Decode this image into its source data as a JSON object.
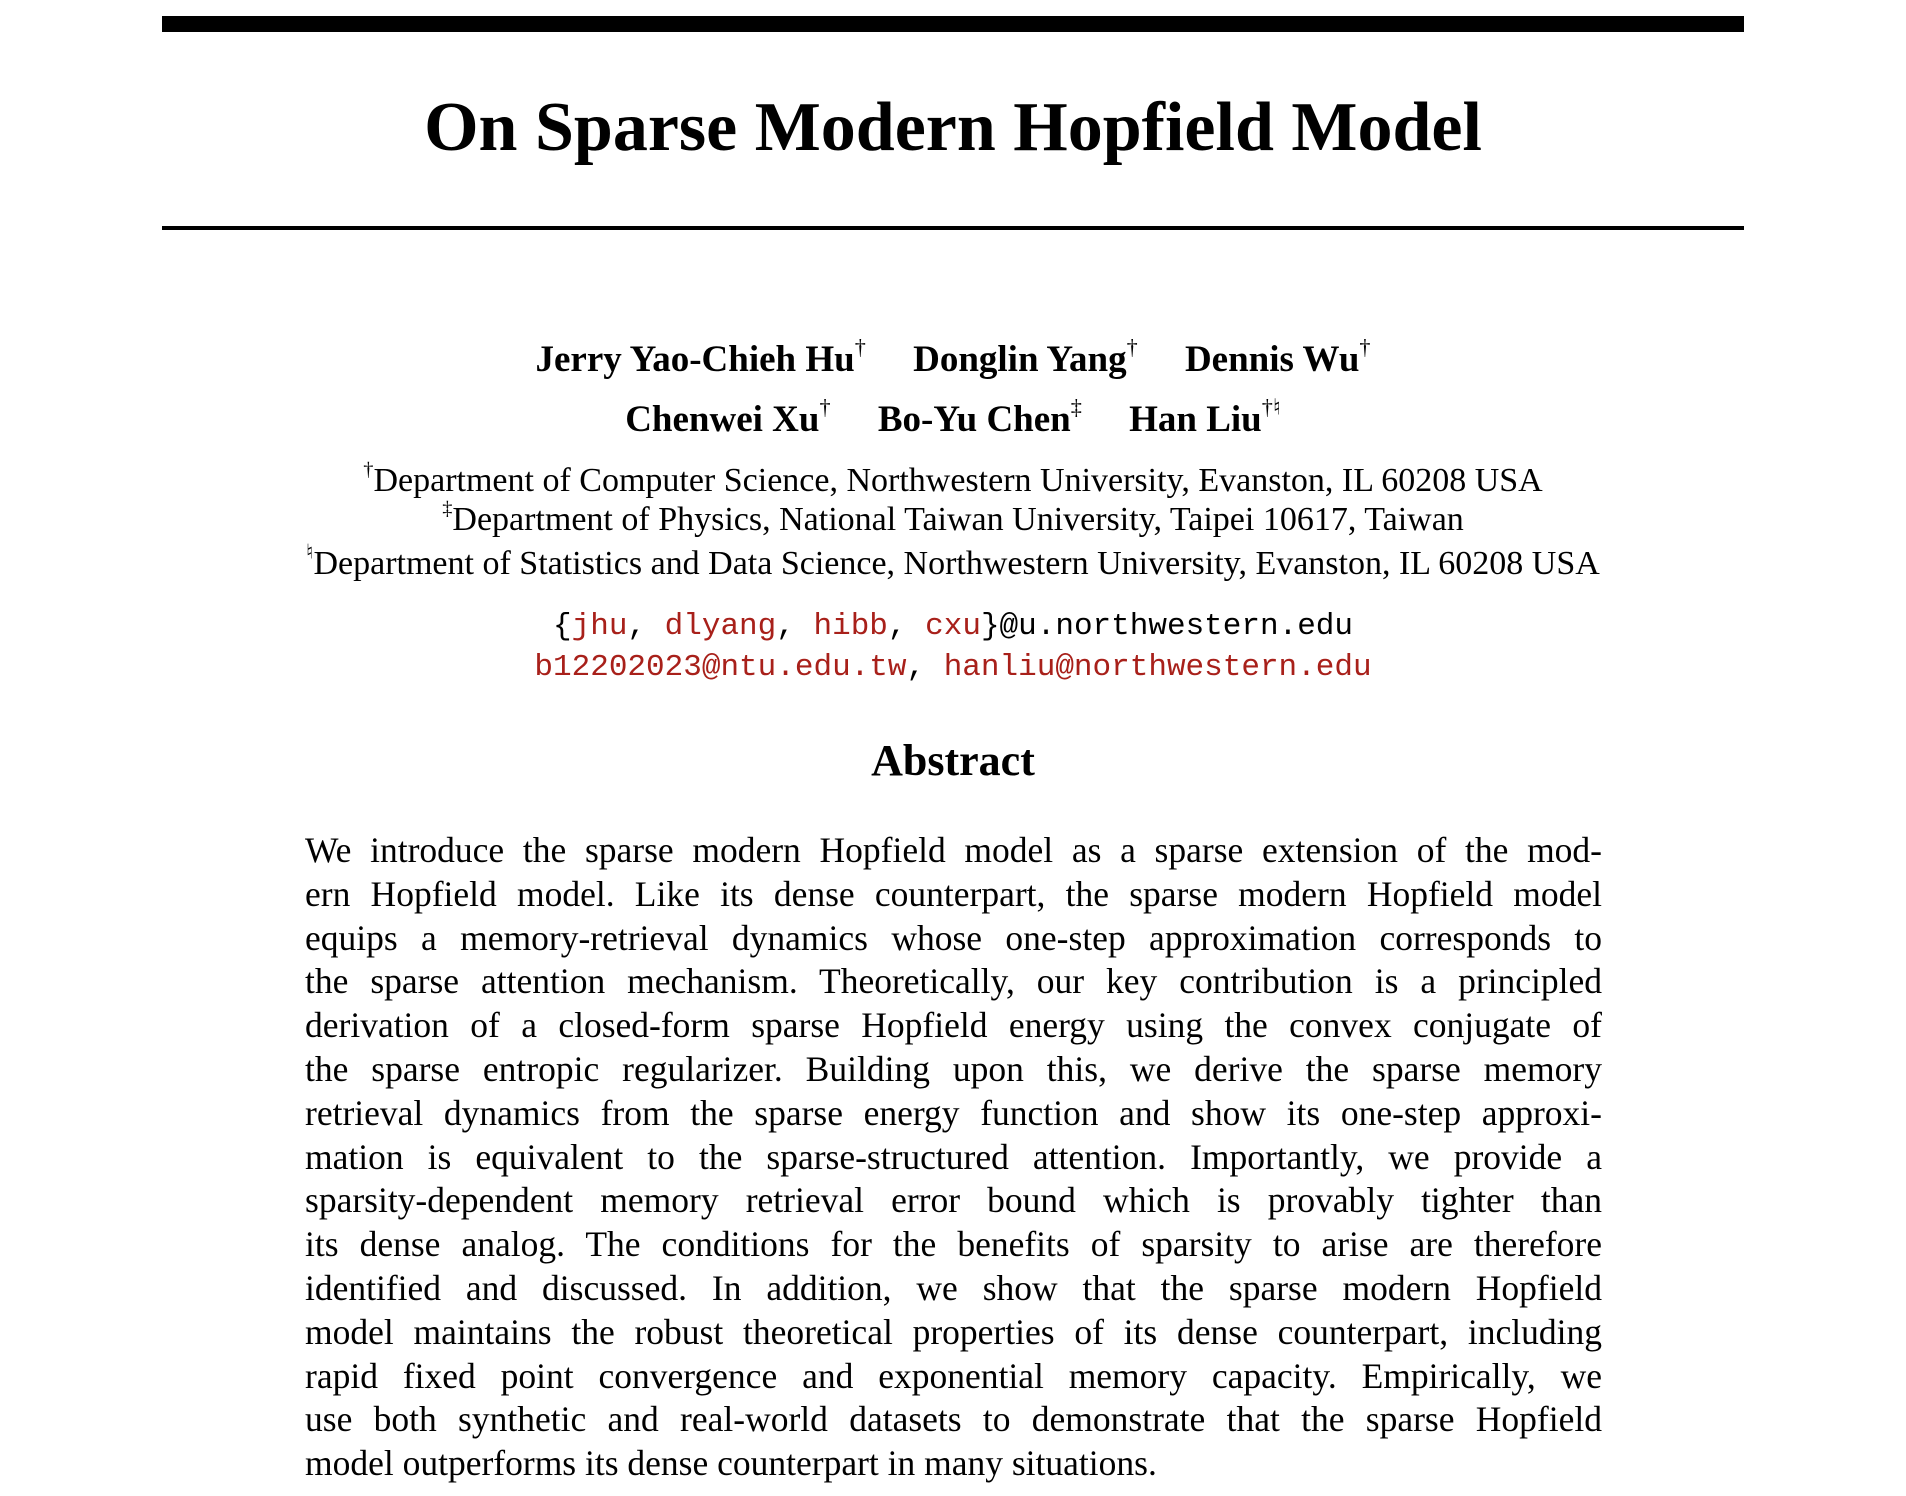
{
  "title": "On Sparse Modern Hopfield Model",
  "authors": {
    "row1": [
      {
        "name": "Jerry Yao-Chieh Hu",
        "mark": "†"
      },
      {
        "name": "Donglin Yang",
        "mark": "†"
      },
      {
        "name": "Dennis Wu",
        "mark": "†"
      }
    ],
    "row2": [
      {
        "name": "Chenwei Xu",
        "mark": "†"
      },
      {
        "name": "Bo-Yu Chen",
        "mark": "‡"
      },
      {
        "name": "Han Liu",
        "mark": "†♮"
      }
    ]
  },
  "affiliations": [
    {
      "mark": "†",
      "text": "Department of Computer Science, Northwestern University, Evanston, IL 60208 USA"
    },
    {
      "mark": "‡",
      "text": "Department of Physics, National Taiwan University, Taipei 10617, Taiwan"
    },
    {
      "mark": "♮",
      "text": "Department of Statistics and Data Science, Northwestern University, Evanston, IL 60208 USA"
    }
  ],
  "emails": {
    "open": "{",
    "users": [
      "jhu",
      "dlyang",
      "hibb",
      "cxu"
    ],
    "sep": ", ",
    "domain": "}@u.northwestern.edu",
    "line2": [
      "b12202023@ntu.edu.tw",
      "hanliu@northwestern.edu"
    ]
  },
  "link_color": "#a8201a",
  "abstract": {
    "heading": "Abstract",
    "lines": [
      "We introduce the sparse modern Hopfield model as a sparse extension of the mod-",
      "ern Hopfield model. Like its dense counterpart, the sparse modern Hopfield model",
      "equips a memory-retrieval dynamics whose one-step approximation corresponds to",
      "the sparse attention mechanism. Theoretically, our key contribution is a principled",
      "derivation of a closed-form sparse Hopfield energy using the convex conjugate of",
      "the sparse entropic regularizer. Building upon this, we derive the sparse memory",
      "retrieval dynamics from the sparse energy function and show its one-step approxi-",
      "mation is equivalent to the sparse-structured attention. Importantly, we provide a",
      "sparsity-dependent memory retrieval error bound which is provably tighter than",
      "its dense analog. The conditions for the benefits of sparsity to arise are therefore",
      "identified and discussed. In addition, we show that the sparse modern Hopfield",
      "model maintains the robust theoretical properties of its dense counterpart, including",
      "rapid fixed point convergence and exponential memory capacity. Empirically, we",
      "use both synthetic and real-world datasets to demonstrate that the sparse Hopfield",
      "model outperforms its dense counterpart in many situations."
    ]
  }
}
